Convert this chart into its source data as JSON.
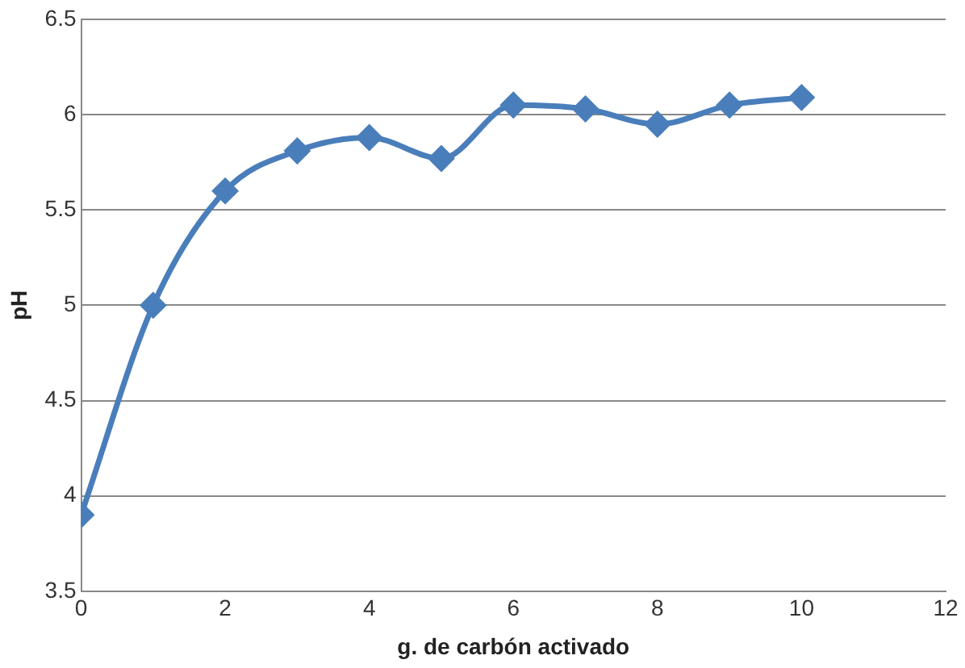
{
  "chart_data": {
    "type": "line",
    "xlabel": "g. de carbón activado",
    "ylabel": "pH",
    "x": [
      0,
      1,
      2,
      3,
      4,
      5,
      6,
      7,
      8,
      9,
      10
    ],
    "series": [
      {
        "color": "#4a7ebb",
        "values": [
          3.9,
          5.0,
          5.6,
          5.81,
          5.88,
          5.77,
          6.05,
          6.03,
          5.95,
          6.05,
          6.09
        ]
      }
    ],
    "xlim": [
      0,
      12
    ],
    "xticks": [
      0,
      2,
      4,
      6,
      8,
      10,
      12
    ],
    "ylim": [
      3.5,
      6.5
    ],
    "yticks": [
      3.5,
      4,
      4.5,
      5,
      5.5,
      6,
      6.5
    ],
    "grid": "y",
    "legend": false,
    "marker": "diamond",
    "line_style": "solid"
  }
}
